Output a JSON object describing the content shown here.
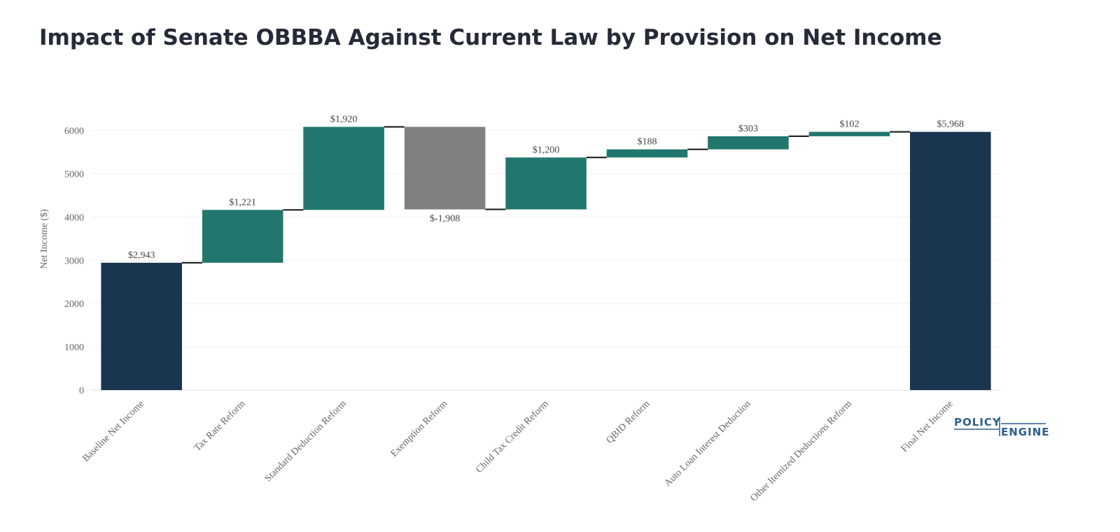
{
  "chart_data": {
    "type": "waterfall",
    "title": "Impact of Senate OBBBA Against Current Law by Provision on Net Income",
    "y_label": "Net Income ($)",
    "categories": [
      "Baseline Net Income",
      "Tax Rate Reform",
      "Standard Deduction Reform",
      "Exemption Reform",
      "Child Tax Credit Reform",
      "QBID Reform",
      "Auto Loan Interest Deduction",
      "Other Itemized Deductions Reform",
      "Final Net Income"
    ],
    "measure": [
      "absolute",
      "relative",
      "relative",
      "relative",
      "relative",
      "relative",
      "relative",
      "relative",
      "total"
    ],
    "values": [
      2943,
      1221,
      1920,
      -1908,
      1200,
      188,
      303,
      102,
      5968
    ],
    "value_labels": [
      "$2,943",
      "$1,221",
      "$1,920",
      "$-1,908",
      "$1,200",
      "$188",
      "$303",
      "$102",
      "$5,968"
    ],
    "colors": {
      "total": "#1a3550",
      "increase": "#21776e",
      "decrease": "#808080"
    },
    "ylim": [
      0,
      6350
    ],
    "yticks": [
      0,
      1000,
      2000,
      3000,
      4000,
      5000,
      6000
    ],
    "grid": true,
    "logo": [
      "POLICY",
      "ENGINE"
    ]
  }
}
